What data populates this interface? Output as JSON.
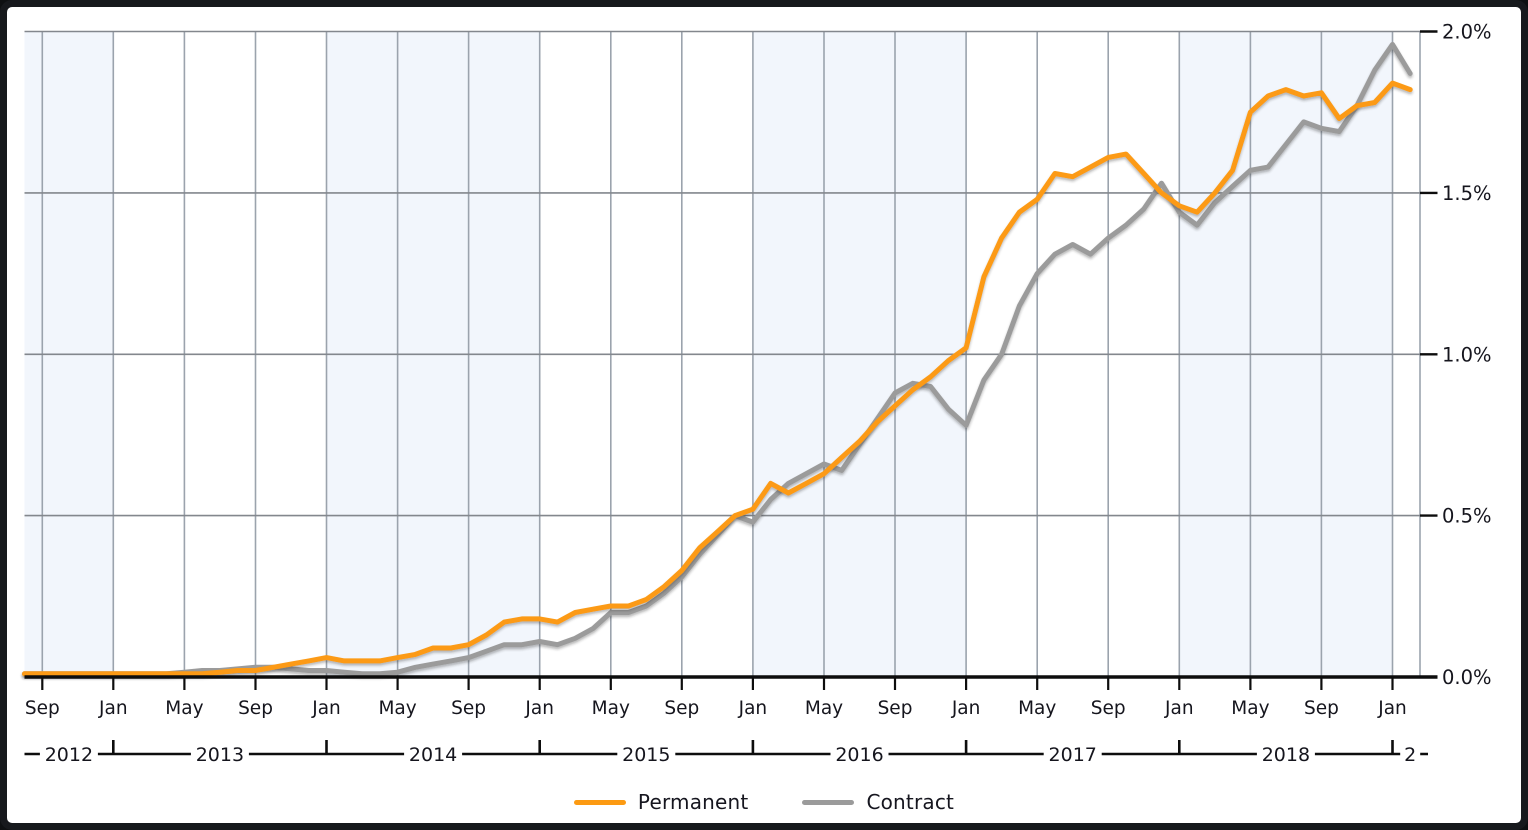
{
  "frame": {
    "background": "#ffffff",
    "border_color": "#17191d"
  },
  "legend": {
    "position": "bottom"
  },
  "chart_data": {
    "type": "line",
    "title": "",
    "x_unit": "month",
    "x": [
      "2012-08",
      "2012-09",
      "2012-10",
      "2012-11",
      "2012-12",
      "2013-01",
      "2013-02",
      "2013-03",
      "2013-04",
      "2013-05",
      "2013-06",
      "2013-07",
      "2013-08",
      "2013-09",
      "2013-10",
      "2013-11",
      "2013-12",
      "2014-01",
      "2014-02",
      "2014-03",
      "2014-04",
      "2014-05",
      "2014-06",
      "2014-07",
      "2014-08",
      "2014-09",
      "2014-10",
      "2014-11",
      "2014-12",
      "2015-01",
      "2015-02",
      "2015-03",
      "2015-04",
      "2015-05",
      "2015-06",
      "2015-07",
      "2015-08",
      "2015-09",
      "2015-10",
      "2015-11",
      "2015-12",
      "2016-01",
      "2016-02",
      "2016-03",
      "2016-04",
      "2016-05",
      "2016-06",
      "2016-07",
      "2016-08",
      "2016-09",
      "2016-10",
      "2016-11",
      "2016-12",
      "2017-01",
      "2017-02",
      "2017-03",
      "2017-04",
      "2017-05",
      "2017-06",
      "2017-07",
      "2017-08",
      "2017-09",
      "2017-10",
      "2017-11",
      "2017-12",
      "2018-01",
      "2018-02",
      "2018-03",
      "2018-04",
      "2018-05",
      "2018-06",
      "2018-07",
      "2018-08",
      "2018-09",
      "2018-10",
      "2018-11",
      "2018-12",
      "2019-01",
      "2019-02"
    ],
    "series": [
      {
        "name": "Permanent",
        "color": "#fc9a12",
        "values": [
          0.01,
          0.01,
          0.01,
          0.01,
          0.01,
          0.01,
          0.01,
          0.01,
          0.01,
          0.01,
          0.01,
          0.015,
          0.02,
          0.02,
          0.03,
          0.04,
          0.05,
          0.06,
          0.05,
          0.05,
          0.05,
          0.06,
          0.07,
          0.09,
          0.09,
          0.1,
          0.13,
          0.17,
          0.18,
          0.18,
          0.17,
          0.2,
          0.21,
          0.22,
          0.22,
          0.24,
          0.28,
          0.33,
          0.4,
          0.45,
          0.5,
          0.52,
          0.6,
          0.57,
          0.6,
          0.63,
          0.68,
          0.73,
          0.79,
          0.84,
          0.89,
          0.93,
          0.98,
          1.02,
          1.24,
          1.36,
          1.44,
          1.48,
          1.56,
          1.55,
          1.58,
          1.61,
          1.62,
          1.56,
          1.5,
          1.46,
          1.44,
          1.5,
          1.57,
          1.75,
          1.8,
          1.82,
          1.8,
          1.81,
          1.73,
          1.77,
          1.78,
          1.84,
          1.82
        ]
      },
      {
        "name": "Contract",
        "color": "#9b9b9b",
        "values": [
          0.01,
          0.01,
          0.01,
          0.01,
          0.01,
          0.01,
          0.01,
          0.01,
          0.01,
          0.015,
          0.02,
          0.02,
          0.025,
          0.03,
          0.03,
          0.025,
          0.02,
          0.02,
          0.015,
          0.01,
          0.01,
          0.015,
          0.03,
          0.04,
          0.05,
          0.06,
          0.08,
          0.1,
          0.1,
          0.11,
          0.1,
          0.12,
          0.15,
          0.2,
          0.2,
          0.22,
          0.26,
          0.31,
          0.38,
          0.44,
          0.5,
          0.48,
          0.55,
          0.6,
          0.63,
          0.66,
          0.64,
          0.72,
          0.8,
          0.88,
          0.91,
          0.9,
          0.83,
          0.78,
          0.92,
          1.0,
          1.15,
          1.25,
          1.31,
          1.34,
          1.31,
          1.36,
          1.4,
          1.45,
          1.53,
          1.44,
          1.4,
          1.47,
          1.52,
          1.57,
          1.58,
          1.65,
          1.72,
          1.7,
          1.69,
          1.77,
          1.88,
          1.96,
          1.87
        ]
      }
    ],
    "ylim": [
      0,
      2.0
    ],
    "y_ticks": [
      {
        "value": 0.0,
        "label": "0.0%"
      },
      {
        "value": 0.5,
        "label": "0.5%"
      },
      {
        "value": 1.0,
        "label": "1.0%"
      },
      {
        "value": 1.5,
        "label": "1.5%"
      },
      {
        "value": 2.0,
        "label": "2.0%"
      }
    ],
    "x_tick_labels": [
      {
        "month_index": 1,
        "label": "Sep"
      },
      {
        "month_index": 5,
        "label": "Jan"
      },
      {
        "month_index": 9,
        "label": "May"
      },
      {
        "month_index": 13,
        "label": "Sep"
      },
      {
        "month_index": 17,
        "label": "Jan"
      },
      {
        "month_index": 21,
        "label": "May"
      },
      {
        "month_index": 25,
        "label": "Sep"
      },
      {
        "month_index": 29,
        "label": "Jan"
      },
      {
        "month_index": 33,
        "label": "May"
      },
      {
        "month_index": 37,
        "label": "Sep"
      },
      {
        "month_index": 41,
        "label": "Jan"
      },
      {
        "month_index": 45,
        "label": "May"
      },
      {
        "month_index": 49,
        "label": "Sep"
      },
      {
        "month_index": 53,
        "label": "Jan"
      },
      {
        "month_index": 57,
        "label": "May"
      },
      {
        "month_index": 61,
        "label": "Sep"
      },
      {
        "month_index": 65,
        "label": "Jan"
      },
      {
        "month_index": 69,
        "label": "May"
      },
      {
        "month_index": 73,
        "label": "Sep"
      },
      {
        "month_index": 77,
        "label": "Jan"
      }
    ],
    "year_axis": {
      "separator_month_indices": [
        5,
        17,
        29,
        41,
        53,
        65,
        77
      ],
      "labels": [
        "2012",
        "2013",
        "2014",
        "2015",
        "2016",
        "2017",
        "2018",
        "2"
      ]
    },
    "bands": {
      "boundaries_month_indices": [
        0,
        5,
        17,
        29,
        41,
        53,
        65,
        77
      ],
      "fill_shaded": "#f2f6fc",
      "fill_plain": "#ffffff"
    },
    "grid": {
      "on": true,
      "vertical_color": "#9ba3ad",
      "horizontal_color": "#83878d",
      "axis_color": "#0d0d0d",
      "text_color": "#15151d"
    },
    "legend_position": "bottom"
  }
}
